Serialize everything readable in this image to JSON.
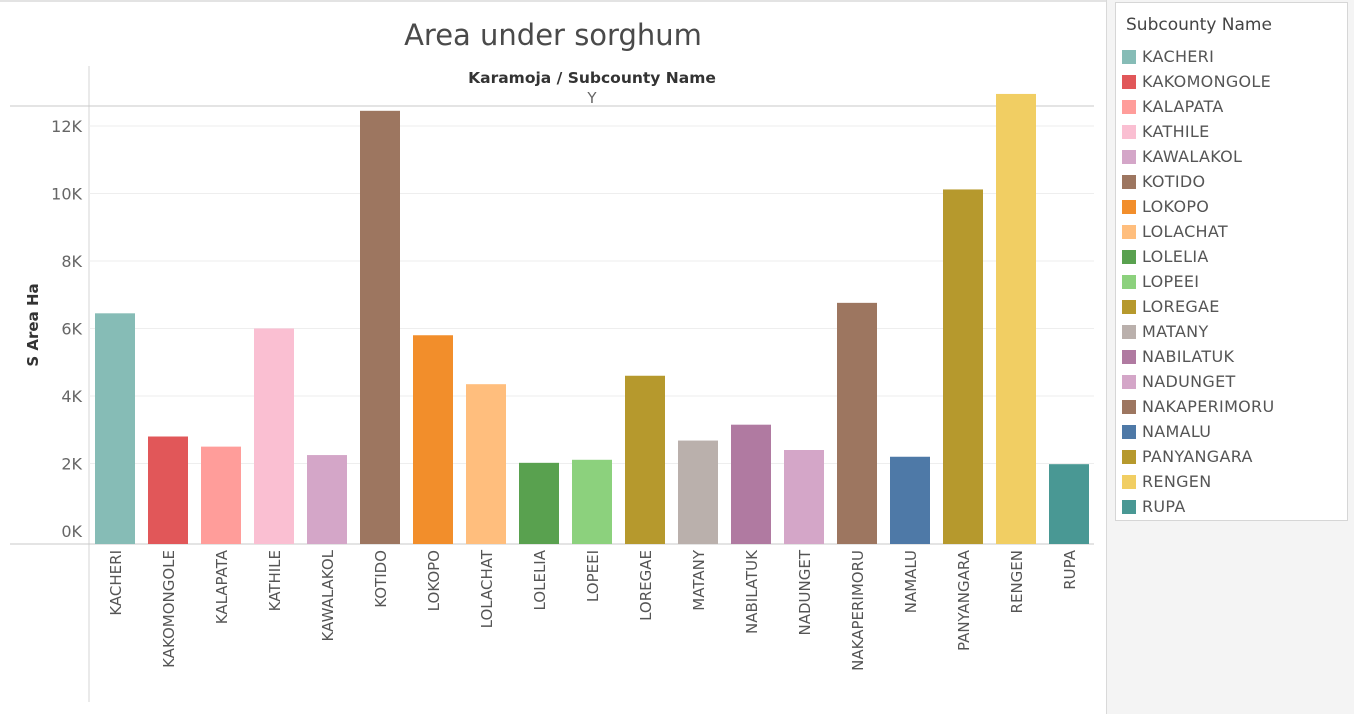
{
  "chart_title": "Area under sorghum",
  "header_label": "Karamoja  /  Subcounty Name",
  "header_sub": "Y",
  "legend": {
    "title": "Subcounty Name"
  },
  "chart_data": {
    "type": "bar",
    "title": "Area under sorghum",
    "ylabel": "S Area Ha",
    "xlabel": "",
    "ylim": [
      0,
      13000
    ],
    "yticks": [
      0,
      2000,
      4000,
      6000,
      8000,
      10000,
      12000
    ],
    "ytick_labels": [
      "0K",
      "2K",
      "4K",
      "6K",
      "8K",
      "10K",
      "12K"
    ],
    "grid": true,
    "legend_placement": "right",
    "categories": [
      "KACHERI",
      "KAKOMONGOLE",
      "KALAPATA",
      "KATHILE",
      "KAWALAKOL",
      "KOTIDO",
      "LOKOPO",
      "LOLACHAT",
      "LOLELIA",
      "LOPEEI",
      "LOREGAE",
      "MATANY",
      "NABILATUK",
      "NADUNGET",
      "NAKAPERIMORU",
      "NAMALU",
      "PANYANGARA",
      "RENGEN",
      "RUPA"
    ],
    "values": [
      6450,
      2800,
      2500,
      6000,
      2250,
      12450,
      5800,
      4350,
      2020,
      2110,
      4600,
      2680,
      3150,
      2400,
      6760,
      2200,
      10120,
      12950,
      1980
    ],
    "colors": [
      "#86bcb6",
      "#e15759",
      "#ff9d9a",
      "#fabfd2",
      "#d4a6c8",
      "#9d7660",
      "#f28e2b",
      "#ffbe7d",
      "#59a14f",
      "#8cd17d",
      "#b6992d",
      "#bab0ac",
      "#b07aa1",
      "#d4a6c8",
      "#9d7660",
      "#4e79a7",
      "#b6992d",
      "#f1ce63",
      "#499894"
    ]
  }
}
